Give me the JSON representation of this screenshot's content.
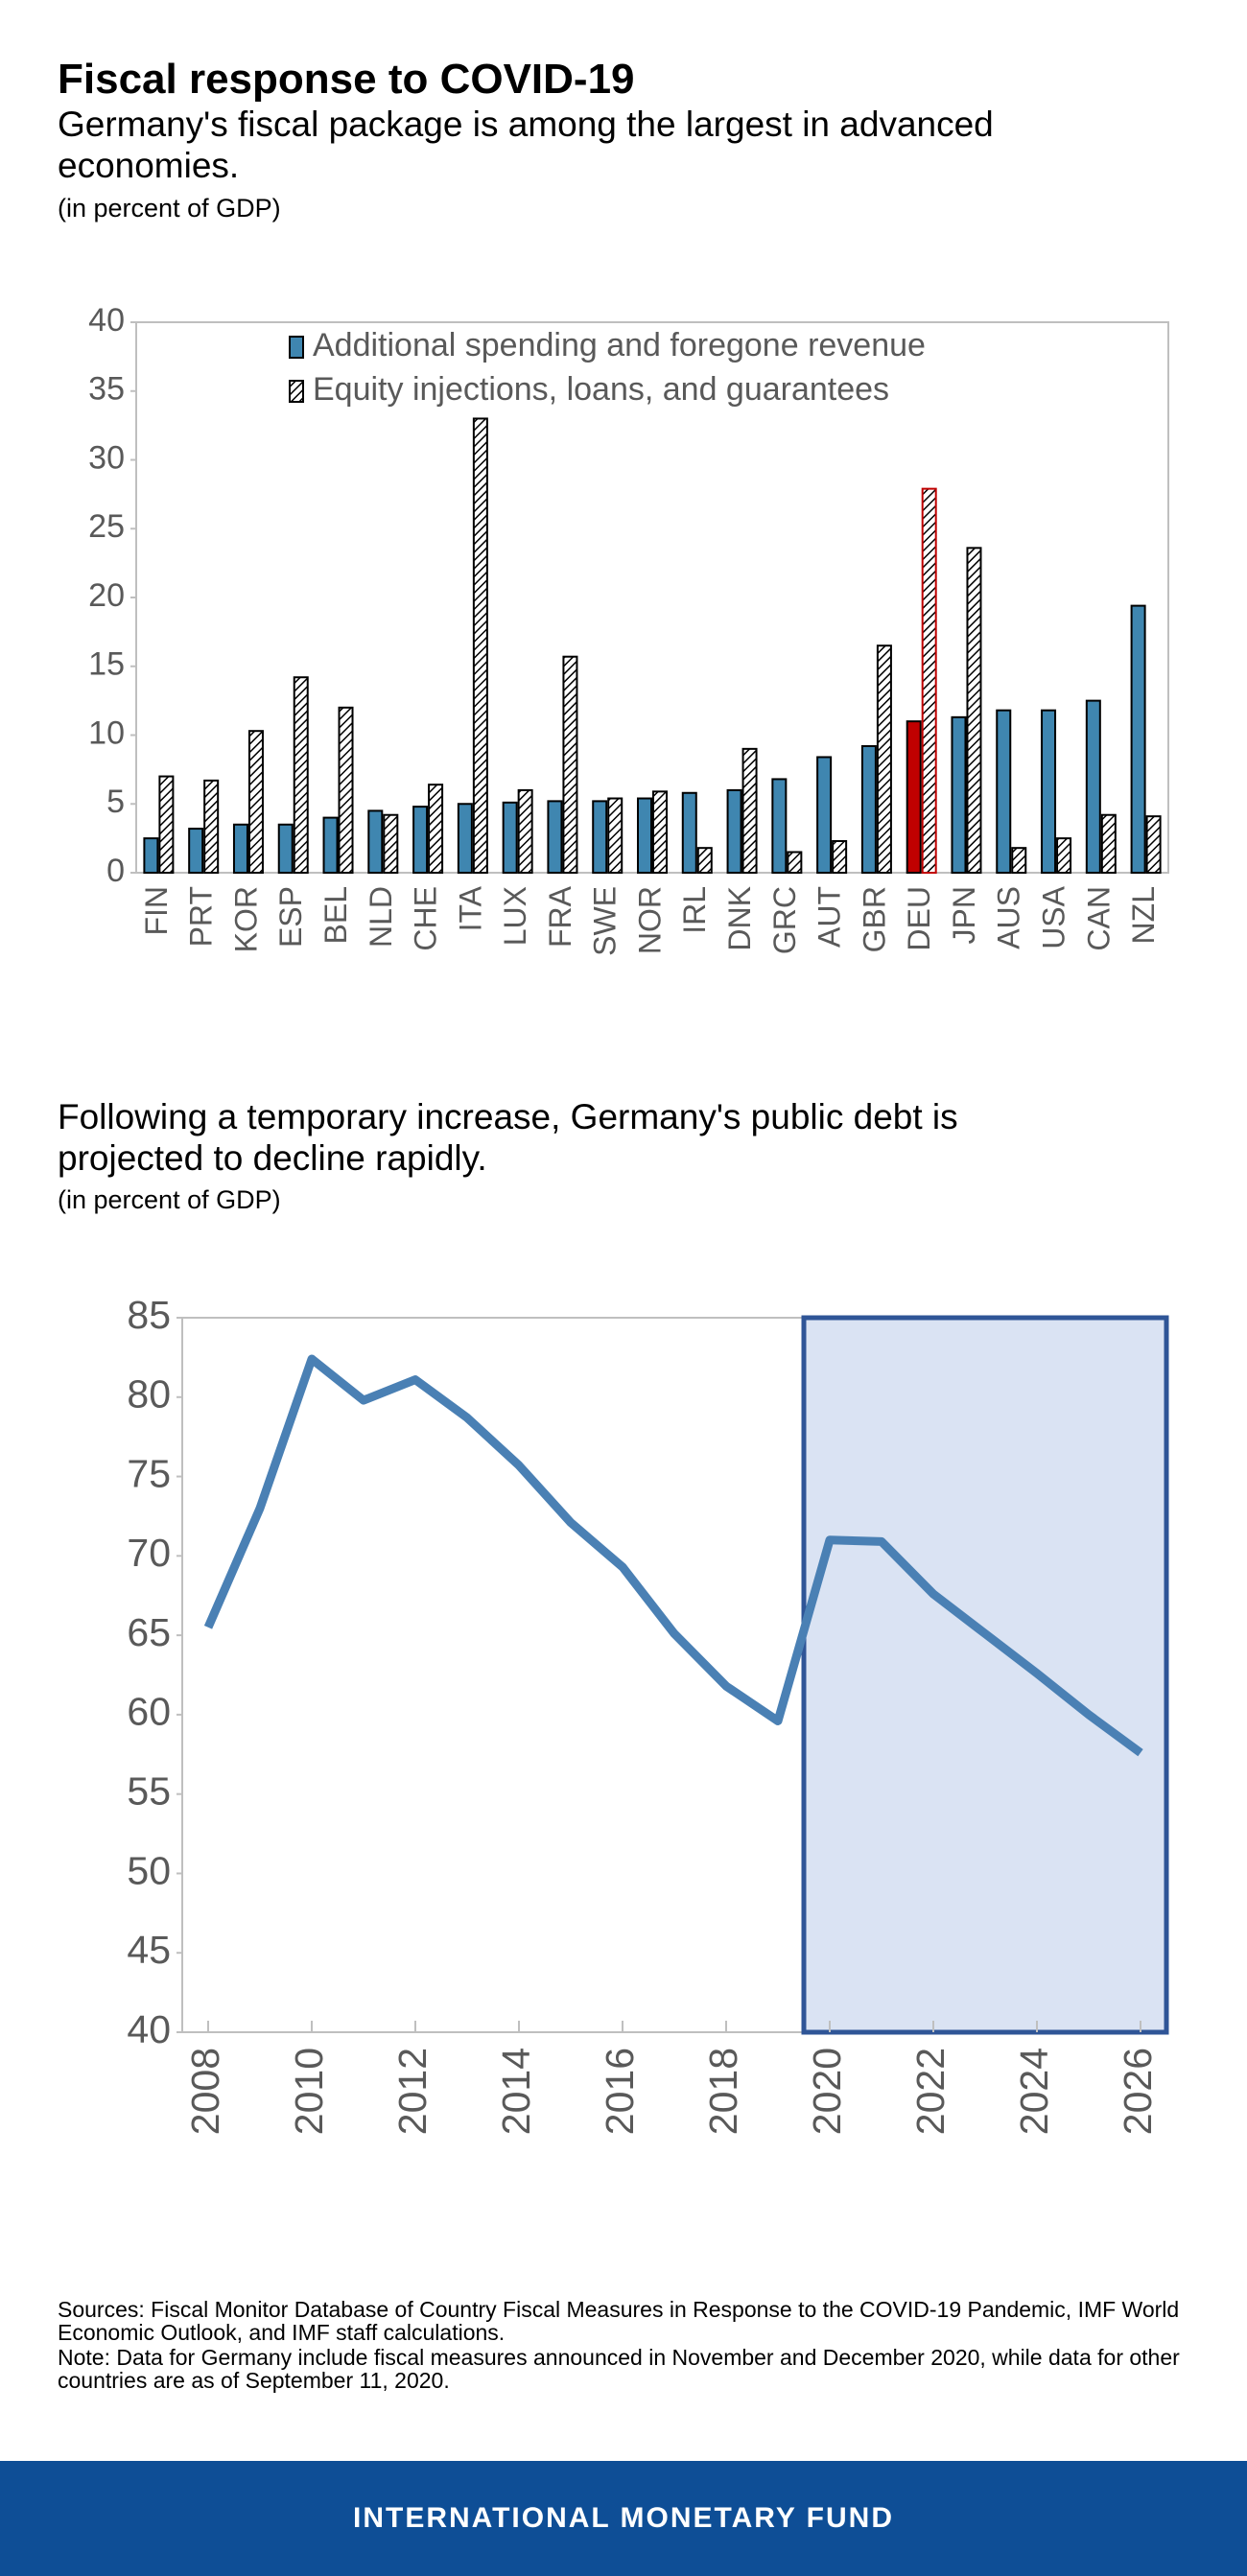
{
  "header": {
    "title": "Fiscal response to COVID-19"
  },
  "chart_data": [
    {
      "type": "bar",
      "title": "Germany's fiscal package is among the largest in advanced economies.",
      "subtitle": "(in percent of GDP)",
      "categories": [
        "FIN",
        "PRT",
        "KOR",
        "ESP",
        "BEL",
        "NLD",
        "CHE",
        "ITA",
        "LUX",
        "FRA",
        "SWE",
        "NOR",
        "IRL",
        "DNK",
        "GRC",
        "AUT",
        "GBR",
        "DEU",
        "JPN",
        "AUS",
        "USA",
        "CAN",
        "NZL"
      ],
      "series": [
        {
          "name": "Additional spending and foregone revenue",
          "color": "#3f86b0",
          "values": [
            2.5,
            3.2,
            3.5,
            3.5,
            4,
            4.5,
            4.8,
            5,
            5.1,
            5.2,
            5.2,
            5.4,
            5.8,
            6,
            6.8,
            8.4,
            9.2,
            11,
            11.3,
            11.8,
            11.8,
            12.5,
            19.4
          ]
        },
        {
          "name": "Equity injections, loans, and guarantees",
          "color": "#ffffff",
          "pattern": "hatch",
          "values": [
            7,
            6.7,
            10.3,
            14.2,
            12,
            4.2,
            6.4,
            33,
            6,
            15.7,
            5.4,
            5.9,
            1.8,
            9,
            1.5,
            2.3,
            16.5,
            27.9,
            23.6,
            1.8,
            2.5,
            4.2,
            4.1
          ]
        }
      ],
      "highlight_category": "DEU",
      "highlight_color": "#c00000",
      "ylim": [
        0,
        40
      ],
      "yticks": [
        0,
        5,
        10,
        15,
        20,
        25,
        30,
        35,
        40
      ],
      "grid": false,
      "legend": "top"
    },
    {
      "type": "line",
      "title": "Following a temporary increase, Germany's public debt is projected to decline rapidly.",
      "subtitle": "(in percent of GDP)",
      "x": [
        2008,
        2009,
        2010,
        2011,
        2012,
        2013,
        2014,
        2015,
        2016,
        2017,
        2018,
        2019,
        2020,
        2021,
        2022,
        2023,
        2024,
        2025,
        2026
      ],
      "series": [
        {
          "color": "#4a80b4",
          "values": [
            65.5,
            73,
            82.4,
            79.8,
            81.1,
            78.7,
            75.7,
            72.1,
            69.3,
            65.1,
            61.8,
            59.6,
            71,
            70.9,
            67.6,
            65.1,
            62.6,
            60,
            57.6
          ]
        }
      ],
      "shaded_range": [
        2019.5,
        2026.5
      ],
      "shade_color": "#dae3f3",
      "shade_border": "#2f5597",
      "xlim": [
        2007.5,
        2026.5
      ],
      "xticks": [
        2008,
        2010,
        2012,
        2014,
        2016,
        2018,
        2020,
        2022,
        2024,
        2026
      ],
      "ylim": [
        40,
        85
      ],
      "yticks": [
        40,
        45,
        50,
        55,
        60,
        65,
        70,
        75,
        80,
        85
      ],
      "grid": false
    }
  ],
  "notes": {
    "sources": "Sources: Fiscal Monitor Database of Country Fiscal Measures in Response to the COVID-19 Pandemic, IMF World Economic Outlook, and IMF staff calculations.",
    "note": "Note: Data for Germany include fiscal measures announced in November and December 2020, while data for other countries are as of September 11, 2020."
  },
  "footer": {
    "brand": "INTERNATIONAL MONETARY FUND"
  }
}
